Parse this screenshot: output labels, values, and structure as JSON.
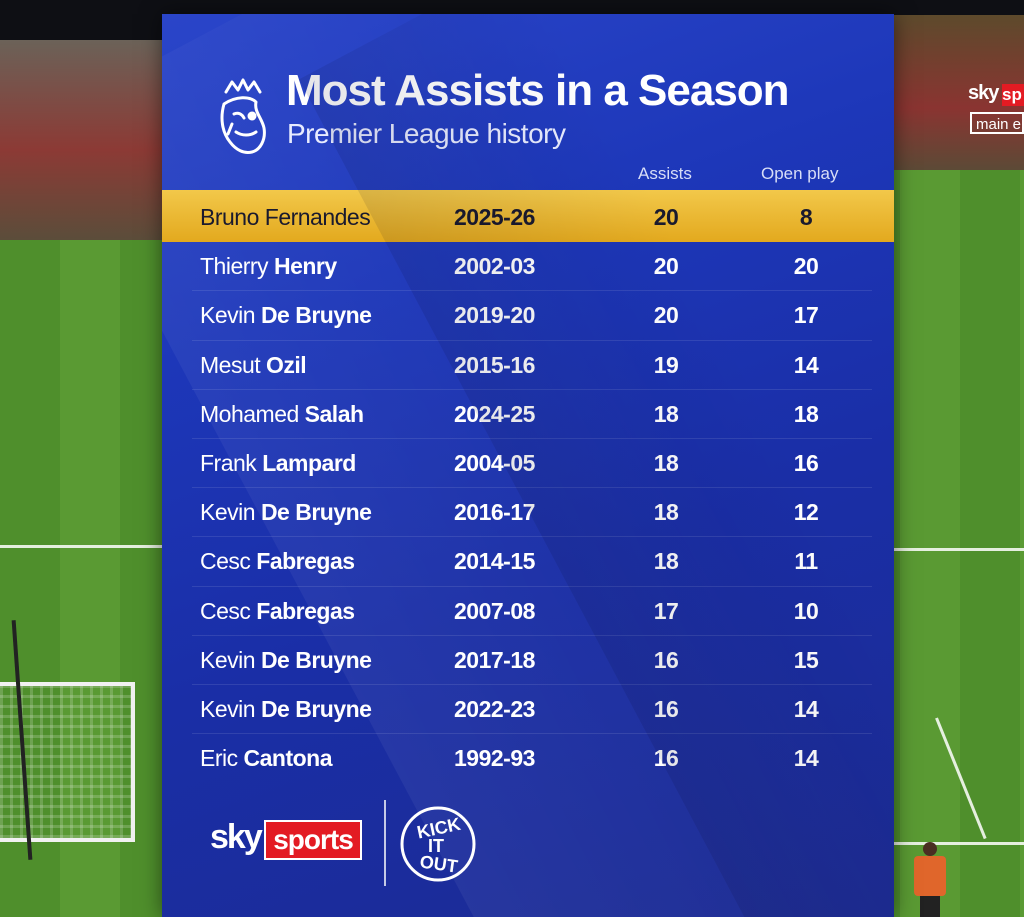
{
  "graphic": {
    "title": "Most Assists in a Season",
    "subtitle": "Premier League history",
    "columns": {
      "assists": "Assists",
      "open_play": "Open play"
    },
    "rows": [
      {
        "first": "Bruno",
        "last": "Fernandes",
        "season": "2025-26",
        "assists": "20",
        "open_play": "8",
        "highlight": true
      },
      {
        "first": "Thierry",
        "last": "Henry",
        "season": "2002-03",
        "assists": "20",
        "open_play": "20"
      },
      {
        "first": "Kevin",
        "last": "De Bruyne",
        "season": "2019-20",
        "assists": "20",
        "open_play": "17"
      },
      {
        "first": "Mesut",
        "last": "Ozil",
        "season": "2015-16",
        "assists": "19",
        "open_play": "14"
      },
      {
        "first": "Mohamed",
        "last": "Salah",
        "season": "2024-25",
        "assists": "18",
        "open_play": "18"
      },
      {
        "first": "Frank",
        "last": "Lampard",
        "season": "2004-05",
        "assists": "18",
        "open_play": "16"
      },
      {
        "first": "Kevin",
        "last": "De Bruyne",
        "season": "2016-17",
        "assists": "18",
        "open_play": "12"
      },
      {
        "first": "Cesc",
        "last": "Fabregas",
        "season": "2014-15",
        "assists": "18",
        "open_play": "11"
      },
      {
        "first": "Cesc",
        "last": "Fabregas",
        "season": "2007-08",
        "assists": "17",
        "open_play": "10"
      },
      {
        "first": "Kevin",
        "last": "De Bruyne",
        "season": "2017-18",
        "assists": "16",
        "open_play": "15"
      },
      {
        "first": "Kevin",
        "last": "De Bruyne",
        "season": "2022-23",
        "assists": "16",
        "open_play": "14"
      },
      {
        "first": "Eric",
        "last": "Cantona",
        "season": "1992-93",
        "assists": "16",
        "open_play": "14"
      }
    ],
    "footer": {
      "sky": "sky",
      "sports": "sports",
      "kick_it_out": "KICK IT OUT"
    }
  },
  "broadcast_bug": {
    "sky": "sky",
    "sp": "sp",
    "main": "main e"
  },
  "colors": {
    "panel": "#1d37b9",
    "highlight": "#eab52c",
    "sky_red": "#e31b23"
  },
  "icons": [
    "premier-league-lion-icon",
    "kick-it-out-logo"
  ]
}
